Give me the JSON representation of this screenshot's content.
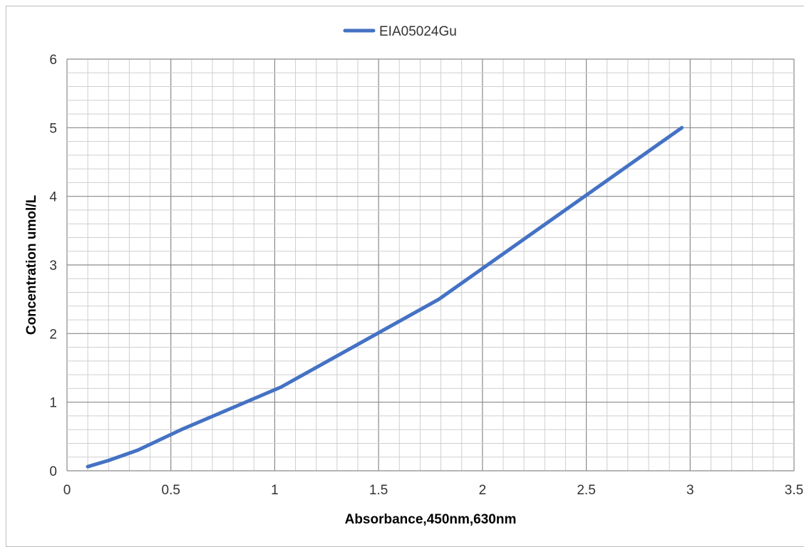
{
  "chart_data": {
    "type": "line",
    "title": "",
    "xlabel": "Absorbance,450nm,630nm",
    "ylabel": "Concentration umol/L",
    "xlim": [
      0,
      3.5
    ],
    "ylim": [
      0,
      6
    ],
    "x_ticks": [
      0,
      0.5,
      1,
      1.5,
      2,
      2.5,
      3,
      3.5
    ],
    "y_ticks": [
      0,
      1,
      2,
      3,
      4,
      5,
      6
    ],
    "x_tick_labels": [
      "0",
      "0.5",
      "1",
      "1.5",
      "2",
      "2.5",
      "3",
      "3.5"
    ],
    "y_tick_labels": [
      "0",
      "1",
      "2",
      "3",
      "4",
      "5",
      "6"
    ],
    "grid": true,
    "legend_position": "top-center",
    "series": [
      {
        "name": "EIA05024Gu",
        "color": "#4472C4",
        "x": [
          0.1,
          0.2,
          0.34,
          0.55,
          1.03,
          1.79,
          2.96
        ],
        "y": [
          0.06,
          0.15,
          0.3,
          0.6,
          1.22,
          2.5,
          5.0
        ]
      }
    ]
  }
}
